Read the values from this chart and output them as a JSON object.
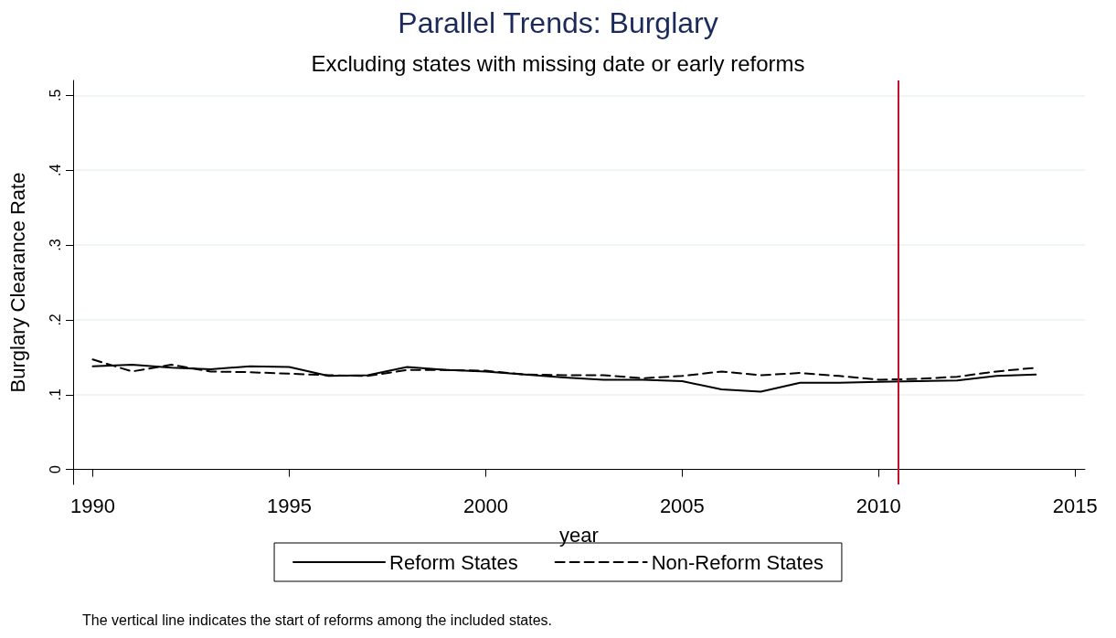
{
  "chart_data": {
    "type": "line",
    "title": "Parallel Trends: Burglary",
    "subtitle": "Excluding states with missing date or early reforms",
    "xlabel": "year",
    "ylabel": "Burglary Clearance Rate",
    "x": [
      1990,
      1991,
      1992,
      1993,
      1994,
      1995,
      1996,
      1997,
      1998,
      1999,
      2000,
      2001,
      2002,
      2003,
      2004,
      2005,
      2006,
      2007,
      2008,
      2009,
      2010,
      2011,
      2012,
      2013,
      2014
    ],
    "series": [
      {
        "name": "Reform States",
        "color": "#000000",
        "line_style": "solid",
        "values": [
          0.138,
          0.14,
          0.136,
          0.134,
          0.138,
          0.137,
          0.125,
          0.126,
          0.137,
          0.133,
          0.131,
          0.127,
          0.123,
          0.12,
          0.12,
          0.118,
          0.107,
          0.104,
          0.116,
          0.116,
          0.117,
          0.118,
          0.119,
          0.125,
          0.127
        ]
      },
      {
        "name": "Non-Reform States",
        "color": "#000000",
        "line_style": "dashed",
        "values": [
          0.147,
          0.131,
          0.14,
          0.131,
          0.13,
          0.128,
          0.126,
          0.125,
          0.133,
          0.133,
          0.132,
          0.127,
          0.126,
          0.126,
          0.122,
          0.125,
          0.131,
          0.126,
          0.129,
          0.125,
          0.12,
          0.121,
          0.124,
          0.131,
          0.136
        ]
      }
    ],
    "xlim": [
      1989.5,
      2015.25
    ],
    "xticks": [
      1990,
      1995,
      2000,
      2005,
      2010,
      2015
    ],
    "ylim": [
      -0.02,
      0.52
    ],
    "yticks": [
      {
        "value": 0,
        "label": "0"
      },
      {
        "value": 0.1,
        "label": ".1"
      },
      {
        "value": 0.2,
        "label": ".2"
      },
      {
        "value": 0.3,
        "label": ".3"
      },
      {
        "value": 0.4,
        "label": ".4"
      },
      {
        "value": 0.5,
        "label": ".5"
      }
    ],
    "grid": "y",
    "legend": "bottom",
    "marker": "none",
    "ref_lines": [
      {
        "axis": "x",
        "value": 2010.5,
        "color": "#c8102e",
        "line_style": "solid"
      }
    ],
    "annotations": [
      "The vertical line indicates the start of reforms among the included states."
    ]
  }
}
